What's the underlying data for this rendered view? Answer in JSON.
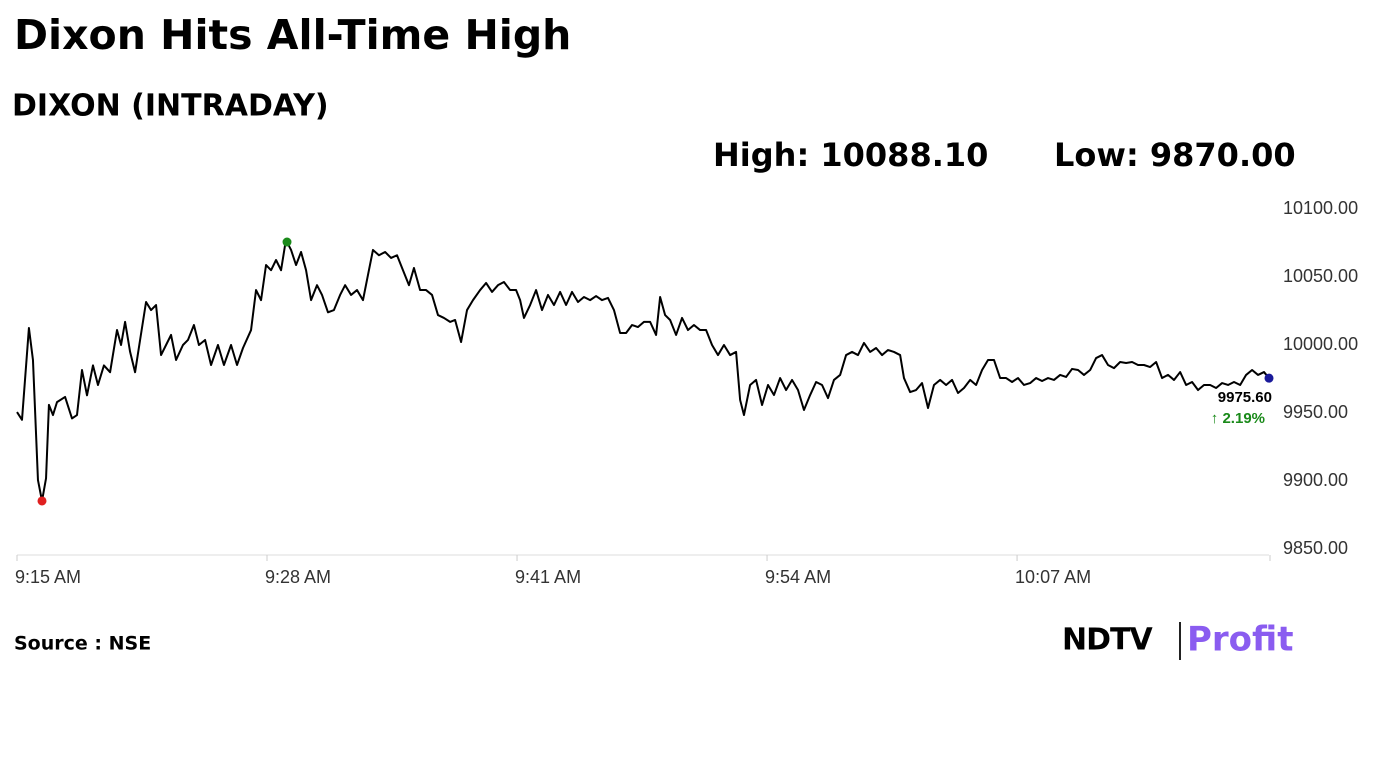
{
  "chart_data": {
    "type": "line",
    "title": "Dixon Hits All-Time High",
    "subtitle": "DIXON (INTRADAY)",
    "high_label": "High: 10088.10",
    "low_label": "Low: 9870.00",
    "last_value_label": "9975.60",
    "change_label": "↑ 2.19%",
    "source": "Source : NSE",
    "brand": [
      "NDTV",
      "Profit"
    ],
    "color": "#000000",
    "high_color": "#1a8a1a",
    "low_color": "#e02020",
    "last_color": "#1a1a9a",
    "change_color": "#1a8a1a",
    "xlim": [
      0,
      65.1
    ],
    "xticks": [
      {
        "value": 0,
        "label": "9:15 AM"
      },
      {
        "value": 13,
        "label": "9:28 AM"
      },
      {
        "value": 26,
        "label": "9:41 AM"
      },
      {
        "value": 39,
        "label": "9:54 AM"
      },
      {
        "value": 52,
        "label": "10:07 AM"
      }
    ],
    "ylim": [
      9850,
      10100
    ],
    "yticks": [
      {
        "value": 9850,
        "label": "9850.00"
      },
      {
        "value": 9900,
        "label": "9900.00"
      },
      {
        "value": 9950,
        "label": "9950.00"
      },
      {
        "value": 10000,
        "label": "10000.00"
      },
      {
        "value": 10050,
        "label": "10050.00"
      },
      {
        "value": 10100,
        "label": "10100.00"
      }
    ],
    "x": [
      0,
      0.26,
      0.62,
      0.83,
      1.09,
      1.3,
      1.51,
      1.66,
      1.87,
      2.08,
      2.5,
      2.86,
      3.12,
      3.38,
      3.64,
      3.95,
      4.21,
      4.52,
      4.84,
      5.2,
      5.41,
      5.62,
      5.88,
      6.14,
      6.4,
      6.71,
      6.97,
      7.23,
      7.49,
      7.75,
      8.01,
      8.27,
      8.63,
      8.89,
      9.2,
      9.46,
      9.78,
      10.09,
      10.45,
      10.76,
      11.13,
      11.44,
      11.75,
      12.17,
      12.43,
      12.69,
      12.95,
      13.21,
      13.47,
      13.73,
      13.94,
      14.04,
      14.25,
      14.51,
      14.77,
      15.03,
      15.29,
      15.6,
      15.86,
      16.17,
      16.48,
      16.8,
      17.06,
      17.37,
      17.68,
      17.99,
      18.25,
      18.51,
      18.82,
      19.14,
      19.45,
      19.76,
      20.07,
      20.38,
      20.64,
      20.96,
      21.27,
      21.58,
      21.89,
      22.2,
      22.52,
      22.78,
      23.09,
      23.4,
      23.71,
      24.08,
      24.39,
      24.7,
      25.01,
      25.32,
      25.64,
      25.95,
      26.16,
      26.36,
      26.68,
      26.99,
      27.3,
      27.61,
      27.92,
      28.24,
      28.55,
      28.86,
      29.17,
      29.48,
      29.8,
      30.11,
      30.42,
      30.73,
      31.04,
      31.36,
      31.67,
      31.98,
      32.29,
      32.6,
      32.92,
      33.23,
      33.44,
      33.7,
      33.96,
      34.27,
      34.58,
      34.89,
      35.2,
      35.52,
      35.83,
      36.14,
      36.45,
      36.76,
      37.08,
      37.39,
      37.6,
      37.8,
      38.12,
      38.43,
      38.74,
      39.05,
      39.36,
      39.68,
      39.99,
      40.3,
      40.61,
      40.92,
      41.24,
      41.55,
      41.86,
      42.17,
      42.48,
      42.8,
      43.11,
      43.42,
      43.73,
      44.04,
      44.36,
      44.67,
      44.98,
      45.29,
      45.6,
      45.92,
      46.12,
      46.44,
      46.75,
      47.06,
      47.37,
      47.68,
      48,
      48.31,
      48.62,
      48.93,
      49.24,
      49.56,
      49.87,
      50.18,
      50.49,
      50.8,
      51.12,
      51.43,
      51.74,
      52.05,
      52.36,
      52.68,
      52.99,
      53.3,
      53.61,
      53.92,
      54.24,
      54.55,
      54.86,
      55.17,
      55.48,
      55.8,
      56.11,
      56.42,
      56.73,
      57.04,
      57.36,
      57.67,
      57.98,
      58.29,
      58.6,
      58.92,
      59.23,
      59.54,
      59.85,
      60.16,
      60.48,
      60.79,
      61.1,
      61.41,
      61.72,
      62.04,
      62.35,
      62.66,
      62.97,
      63.28,
      63.6,
      63.91,
      64.22,
      64.53,
      64.84,
      65.1
    ],
    "values": [
      9950.7,
      9945,
      10012.5,
      9989,
      9900.7,
      9885.3,
      9902,
      9956,
      9948.5,
      9958,
      9961.8,
      9946,
      9948.5,
      9981.6,
      9963,
      9985,
      9970.6,
      9985,
      9980,
      10011,
      10000,
      10017,
      9995,
      9980,
      10003.7,
      10031.6,
      10025.7,
      10029.4,
      9992.6,
      10000,
      10007.4,
      9989,
      10000,
      10003.7,
      10014.7,
      10000,
      10003.7,
      9985.3,
      10000,
      9985.3,
      10000,
      9985.3,
      9997.8,
      10011,
      10040.4,
      10033,
      10058.8,
      10055,
      10062.5,
      10055,
      10073.5,
      10075.7,
      10069.9,
      10058.8,
      10068.4,
      10055,
      10033,
      10044,
      10036.8,
      10024,
      10025.7,
      10036.8,
      10044,
      10036.8,
      10040.4,
      10033,
      10051.5,
      10069.9,
      10066,
      10068.4,
      10064,
      10066,
      10055,
      10044,
      10056.6,
      10040.4,
      10040.4,
      10036.8,
      10022,
      10019.9,
      10017,
      10018.4,
      10002.2,
      10025.7,
      10033,
      10040.4,
      10045.6,
      10039,
      10044,
      10046.3,
      10040.4,
      10040.4,
      10033,
      10019.9,
      10029.4,
      10040.4,
      10025.7,
      10036.8,
      10029.4,
      10039,
      10029.4,
      10039,
      10031.6,
      10035.3,
      10033,
      10036,
      10033,
      10034.6,
      10025.7,
      10008.8,
      10008.8,
      10014.7,
      10013.2,
      10017,
      10017,
      10007.4,
      10035.3,
      10022,
      10018.4,
      10007.4,
      10019.9,
      10011,
      10014.7,
      10011,
      10011,
      10000,
      9992.6,
      10000,
      9992.6,
      9994.9,
      9959.6,
      9948.5,
      9970.6,
      9974.3,
      9955.9,
      9970.6,
      9963.2,
      9975.7,
      9966.9,
      9974.3,
      9966.9,
      9952.2,
      9963.2,
      9972.8,
      9970.6,
      9961,
      9974.3,
      9978,
      9992.6,
      9994.9,
      9992.6,
      10001.5,
      9994.9,
      9997.8,
      9992.6,
      9996.3,
      9994.9,
      9992.6,
      9975.7,
      9965.4,
      9966.9,
      9972,
      9953.7,
      9970.6,
      9974.3,
      9970.6,
      9974.3,
      9964.7,
      9968.4,
      9974.3,
      9970.6,
      9981.6,
      9989,
      9989,
      9975.7,
      9975.7,
      9972.8,
      9975.7,
      9970.6,
      9972,
      9975.7,
      9973.5,
      9975.7,
      9974.3,
      9978,
      9976.5,
      9982.4,
      9981.6,
      9978,
      9981.6,
      9990.4,
      9992.6,
      9985.3,
      9983,
      9987.5,
      9986.8,
      9987.5,
      9985.3,
      9985.3,
      9983.8,
      9987.5,
      9975.7,
      9978,
      9974.3,
      9980.1,
      9970.6,
      9972.8,
      9966.9,
      9970.6,
      9970.6,
      9968.4,
      9972,
      9970.6,
      9972.8,
      9970.6,
      9978,
      9981.6,
      9978,
      9980.1,
      9975.6
    ]
  }
}
